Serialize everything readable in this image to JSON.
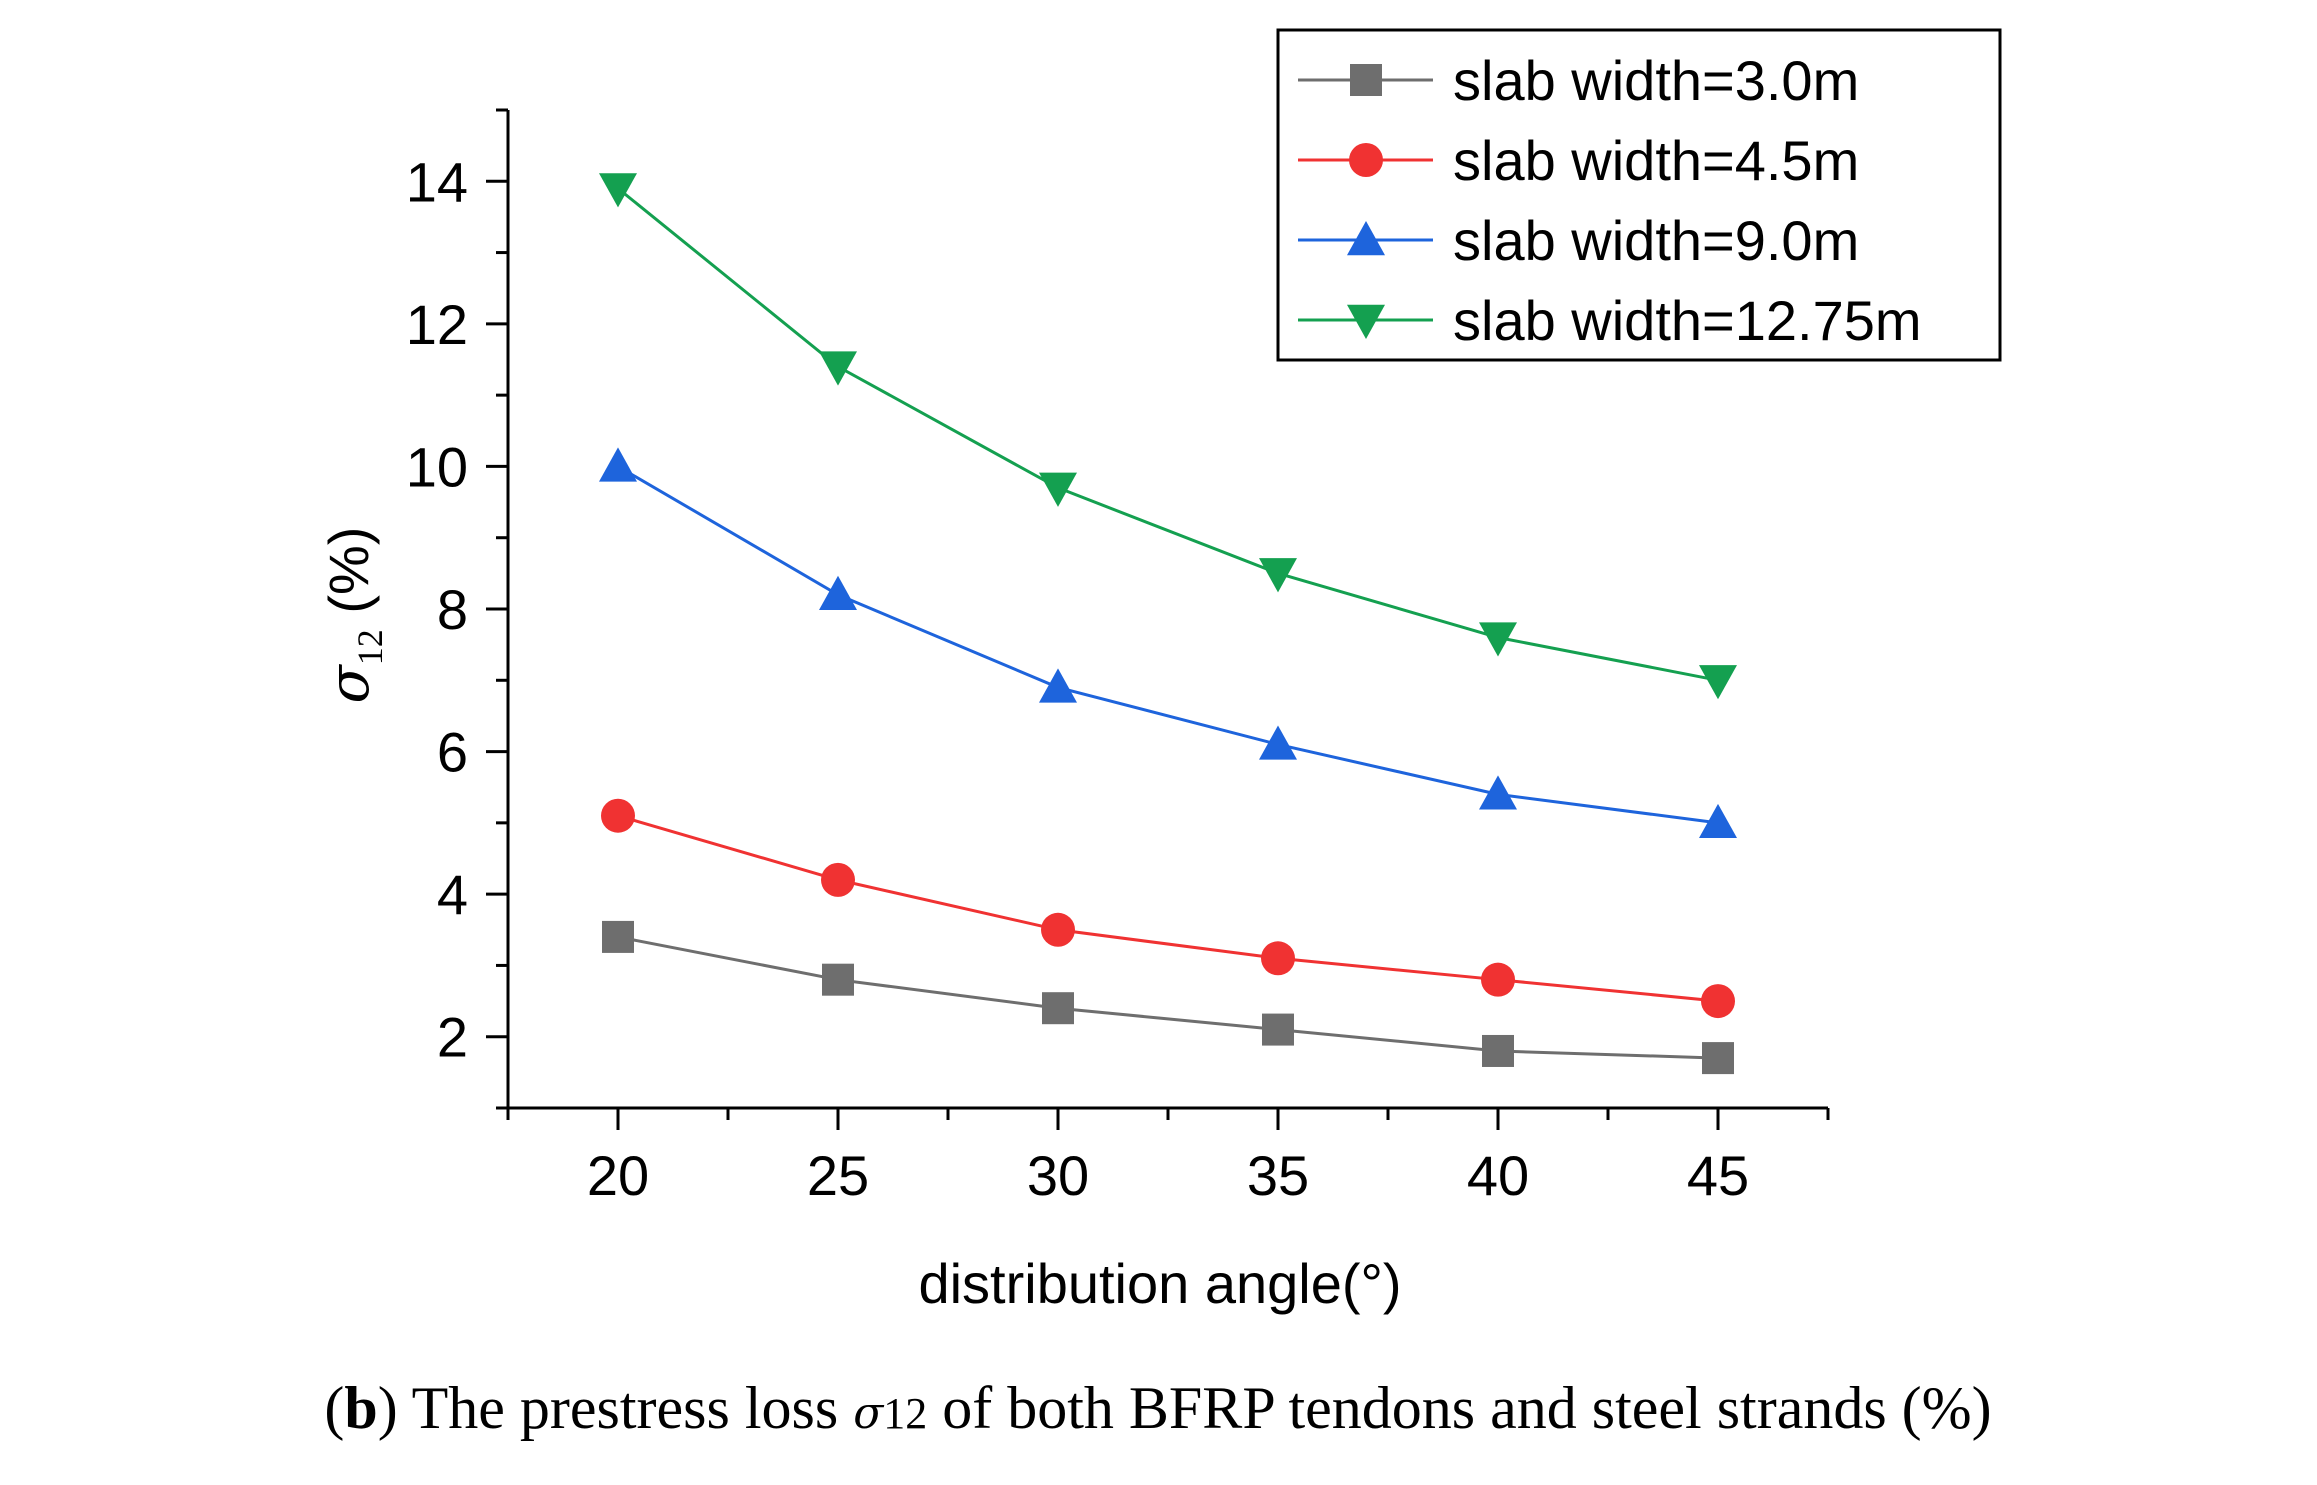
{
  "chart_data": {
    "type": "line",
    "title": "",
    "xlabel": "distribution angle(°)",
    "ylabel_symbol": "σ",
    "ylabel_subscript": "12",
    "ylabel_unit": "(%)",
    "x": [
      20,
      25,
      30,
      35,
      40,
      45
    ],
    "xlim": [
      17.5,
      47.5
    ],
    "ylim": [
      1,
      15
    ],
    "xticks": [
      20,
      25,
      30,
      35,
      40,
      45
    ],
    "yticks": [
      2,
      4,
      6,
      8,
      10,
      12,
      14
    ],
    "grid": false,
    "legend_position": "top-right",
    "series": [
      {
        "name": "slab width=3.0m",
        "color": "#6e6e6e",
        "marker": "square",
        "values": [
          3.4,
          2.8,
          2.4,
          2.1,
          1.8,
          1.7
        ]
      },
      {
        "name": "slab width=4.5m",
        "color": "#f03232",
        "marker": "circle",
        "values": [
          5.1,
          4.2,
          3.5,
          3.1,
          2.8,
          2.5
        ]
      },
      {
        "name": "slab width=9.0m",
        "color": "#1e64dc",
        "marker": "triangle-up",
        "values": [
          10.0,
          8.2,
          6.9,
          6.1,
          5.4,
          5.0
        ]
      },
      {
        "name": "slab width=12.75m",
        "color": "#14a050",
        "marker": "triangle-down",
        "values": [
          13.9,
          11.4,
          9.7,
          8.5,
          7.6,
          7.0
        ]
      }
    ]
  },
  "caption": {
    "label": "b",
    "before_symbol": " The prestress loss ",
    "symbol": "σ",
    "subscript": "12",
    "after_symbol": " of both BFRP tendons and steel strands (%)"
  }
}
